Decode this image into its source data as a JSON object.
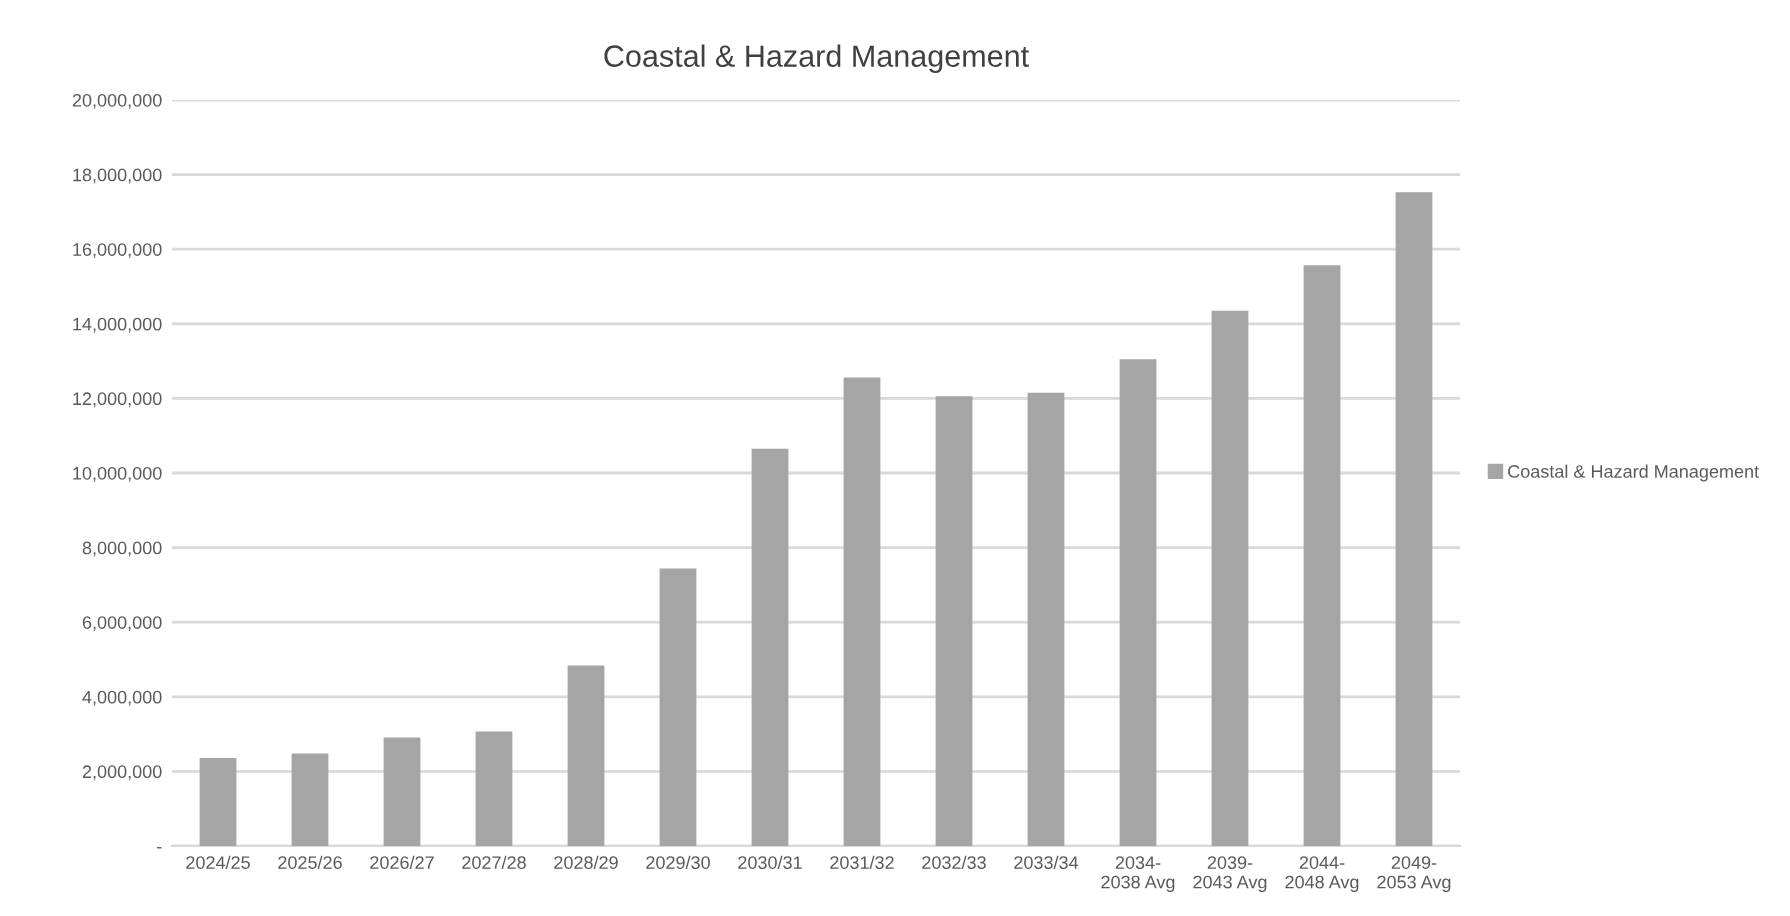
{
  "chart_data": {
    "type": "bar",
    "title": "Coastal & Hazard Management",
    "categories": [
      "2024/25",
      "2025/26",
      "2026/27",
      "2027/28",
      "2028/29",
      "2029/30",
      "2030/31",
      "2031/32",
      "2032/33",
      "2033/34",
      "2034-\n2038 Avg",
      "2039-\n2043 Avg",
      "2044-\n2048 Avg",
      "2049-\n2053 Avg"
    ],
    "series": [
      {
        "name": "Coastal & Hazard Management",
        "color": "#a5a5a5",
        "values": [
          2360000,
          2480000,
          2910000,
          3070000,
          4840000,
          7440000,
          10650000,
          12560000,
          12060000,
          12150000,
          13050000,
          14350000,
          15570000,
          17530000
        ]
      }
    ],
    "ylim": [
      0,
      20000000
    ],
    "yticks": [
      {
        "value": 0,
        "label": "-"
      },
      {
        "value": 2000000,
        "label": "2,000,000"
      },
      {
        "value": 4000000,
        "label": "4,000,000"
      },
      {
        "value": 6000000,
        "label": "6,000,000"
      },
      {
        "value": 8000000,
        "label": "8,000,000"
      },
      {
        "value": 10000000,
        "label": "10,000,000"
      },
      {
        "value": 12000000,
        "label": "12,000,000"
      },
      {
        "value": 14000000,
        "label": "14,000,000"
      },
      {
        "value": 16000000,
        "label": "16,000,000"
      },
      {
        "value": 18000000,
        "label": "18,000,000"
      },
      {
        "value": 20000000,
        "label": "20,000,000"
      }
    ],
    "grid": "y",
    "legend": "right"
  }
}
